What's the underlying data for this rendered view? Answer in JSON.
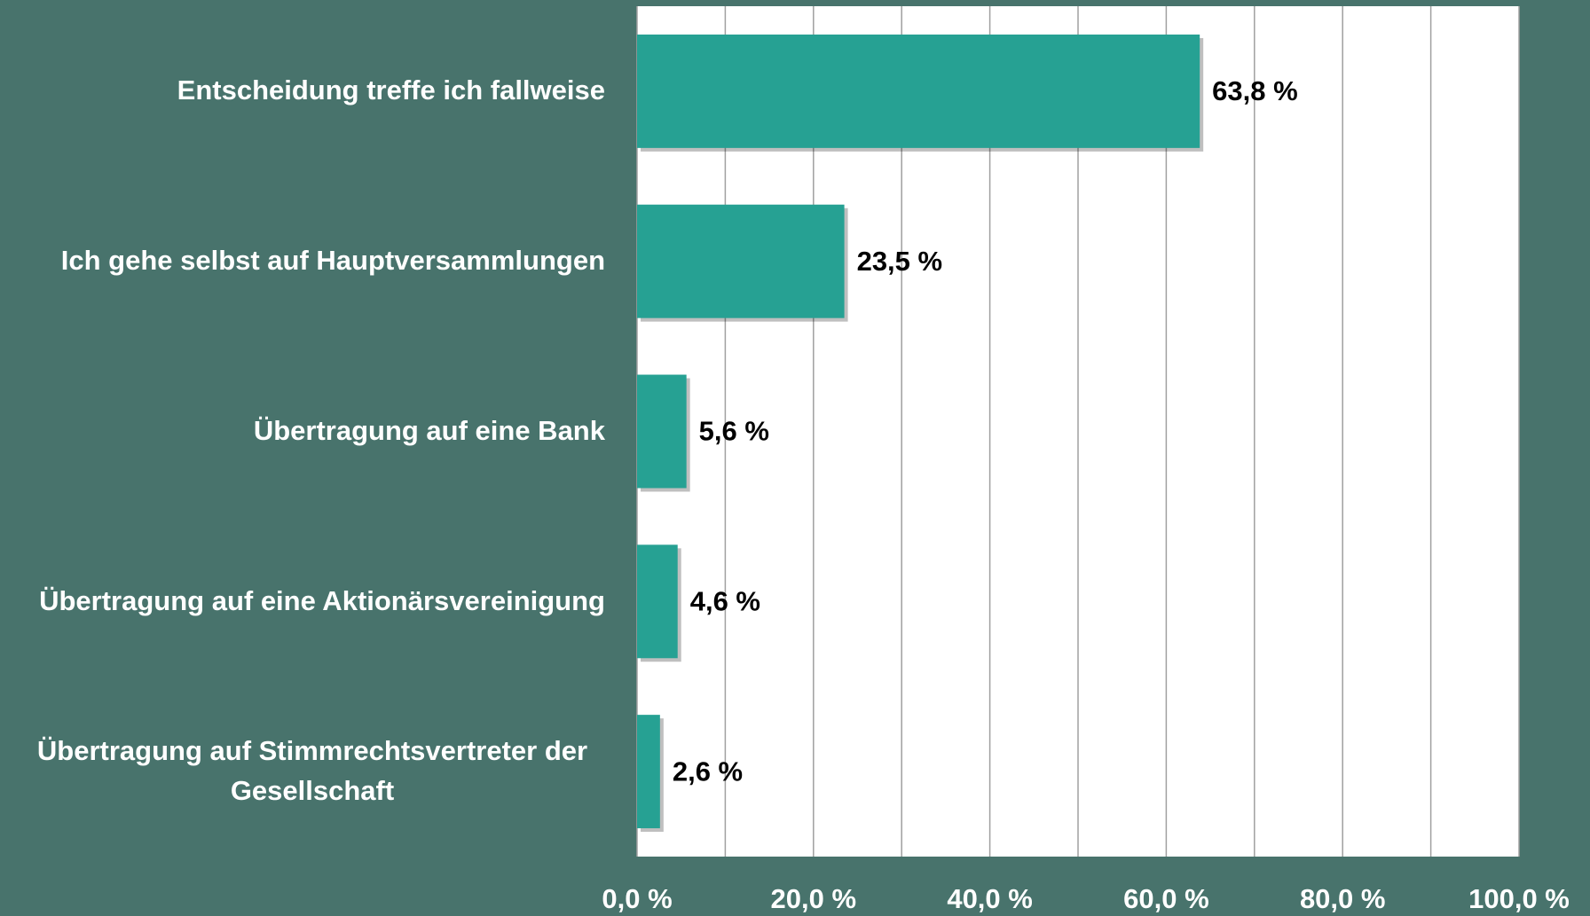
{
  "chart_data": {
    "type": "bar",
    "orientation": "horizontal",
    "categories": [
      "Entscheidung treffe ich fallweise",
      "Ich gehe selbst auf Hauptversammlungen",
      "Übertragung auf eine Bank",
      "Übertragung auf eine Aktionärsvereinigung",
      "Übertragung auf Stimmrechtsvertreter der Gesellschaft"
    ],
    "values": [
      63.8,
      23.5,
      5.6,
      4.6,
      2.6
    ],
    "value_labels": [
      "63,8 %",
      "23,5 %",
      "5,6 %",
      "4,6 %",
      "2,6 %"
    ],
    "color": "#26a193",
    "xlim": [
      0,
      100
    ],
    "xticks": [
      {
        "value": 0,
        "label": "0,0 %"
      },
      {
        "value": 20,
        "label": "20,0 %"
      },
      {
        "value": 40,
        "label": "40,0 %"
      },
      {
        "value": 60,
        "label": "60,0 %"
      },
      {
        "value": 80,
        "label": "80,0 %"
      },
      {
        "value": 100,
        "label": "100,0 %"
      }
    ],
    "minor_xticks": [
      10,
      30,
      50,
      70,
      90
    ],
    "grid": true
  }
}
